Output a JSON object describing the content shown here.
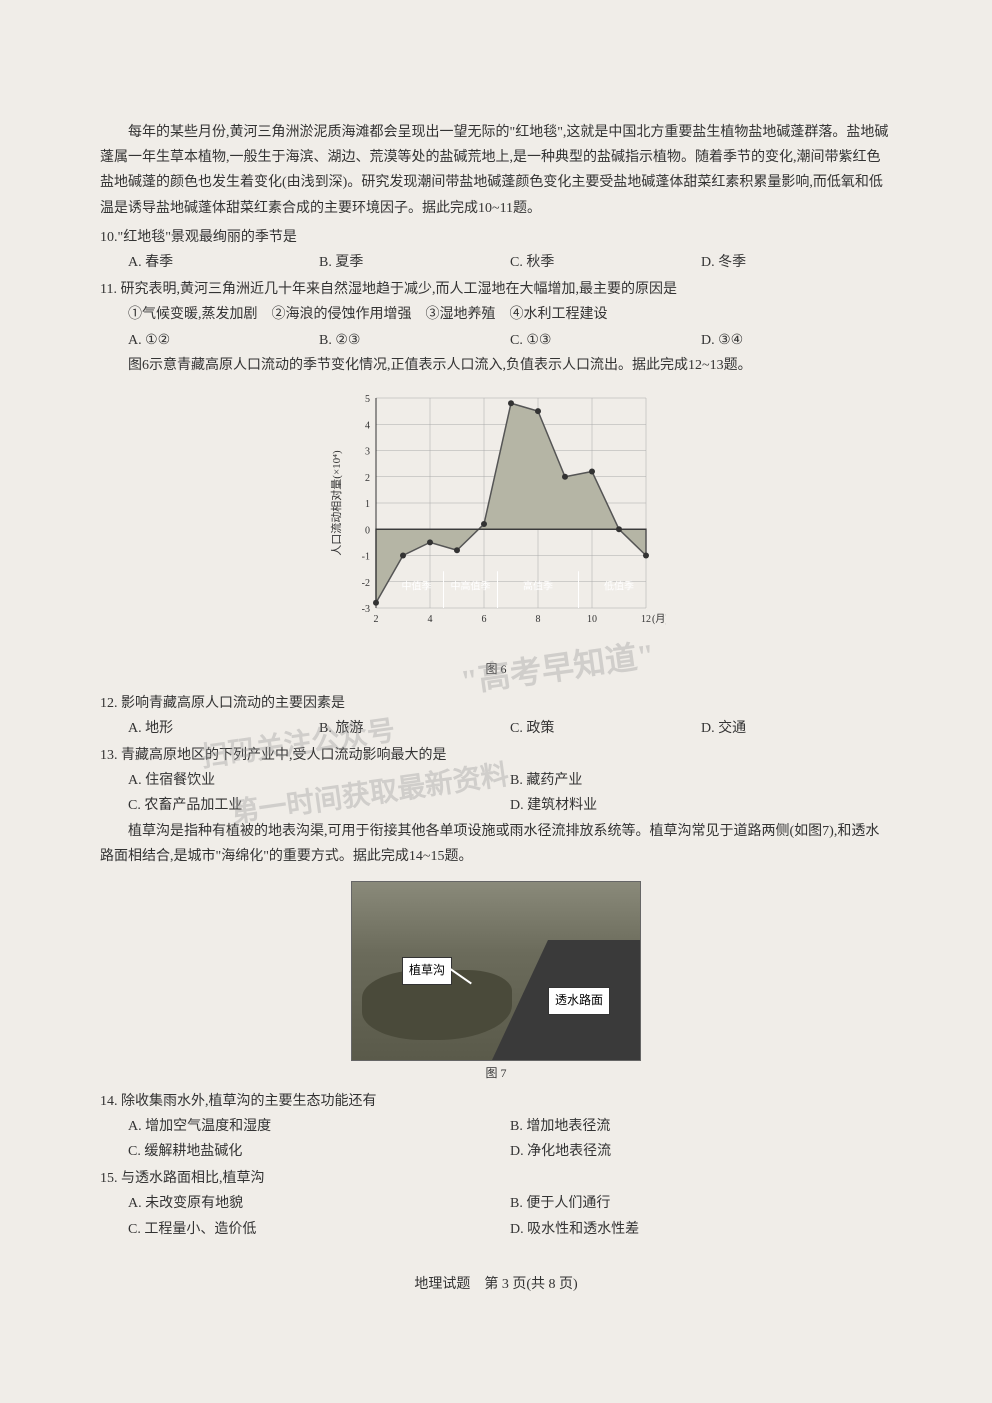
{
  "passage1": {
    "text": "每年的某些月份,黄河三角洲淤泥质海滩都会呈现出一望无际的\"红地毯\",这就是中国北方重要盐生植物盐地碱蓬群落。盐地碱蓬属一年生草本植物,一般生于海滨、湖边、荒漠等处的盐碱荒地上,是一种典型的盐碱指示植物。随着季节的变化,潮间带紫红色盐地碱蓬的颜色也发生着变化(由浅到深)。研究发现潮间带盐地碱蓬颜色变化主要受盐地碱蓬体甜菜红素积累量影响,而低氧和低温是诱导盐地碱蓬体甜菜红素合成的主要环境因子。据此完成10~11题。"
  },
  "q10": {
    "stem": "10.\"红地毯\"景观最绚丽的季节是",
    "A": "A. 春季",
    "B": "B. 夏季",
    "C": "C. 秋季",
    "D": "D. 冬季"
  },
  "q11": {
    "stem": "11. 研究表明,黄河三角洲近几十年来自然湿地趋于减少,而人工湿地在大幅增加,最主要的原因是",
    "line2": "①气候变暖,蒸发加剧　②海浪的侵蚀作用增强　③湿地养殖　④水利工程建设",
    "A": "A. ①②",
    "B": "B. ②③",
    "C": "C. ①③",
    "D": "D. ③④"
  },
  "passage2": {
    "text": "图6示意青藏高原人口流动的季节变化情况,正值表示人口流入,负值表示人口流出。据此完成12~13题。"
  },
  "chart": {
    "type": "area",
    "x": [
      2,
      3,
      4,
      5,
      6,
      7,
      8,
      9,
      10,
      11,
      12
    ],
    "y": [
      -2.8,
      -1.0,
      -0.5,
      -0.8,
      0.2,
      4.8,
      4.5,
      2.0,
      2.2,
      0.0,
      -1.0
    ],
    "ylabel": "人口流动相对量(×10⁴)",
    "xlabel": "(月)",
    "ylim": [
      -3,
      5
    ],
    "ytick_step": 1,
    "xlim": [
      2,
      12
    ],
    "xtick_step": 2,
    "categories": [
      "中值季",
      "中高值季",
      "高值季",
      "低值季"
    ],
    "cat_positions": [
      3.5,
      5.5,
      8,
      11
    ],
    "fill_color": "#b5b5a5",
    "stroke_color": "#555555",
    "grid_color": "#aaaaaa",
    "bg_color": "#f0ede8",
    "caption": "图 6"
  },
  "q12": {
    "stem": "12. 影响青藏高原人口流动的主要因素是",
    "A": "A. 地形",
    "B": "B. 旅游",
    "C": "C. 政策",
    "D": "D. 交通"
  },
  "q13": {
    "stem": "13. 青藏高原地区的下列产业中,受人口流动影响最大的是",
    "A": "A. 住宿餐饮业",
    "B": "B. 藏药产业",
    "C": "C. 农畜产品加工业",
    "D": "D. 建筑材料业"
  },
  "passage3": {
    "text": "植草沟是指种有植被的地表沟渠,可用于衔接其他各单项设施或雨水径流排放系统等。植草沟常见于道路两侧(如图7),和透水路面相结合,是城市\"海绵化\"的重要方式。据此完成14~15题。"
  },
  "photo": {
    "label_a": "植草沟",
    "label_b": "透水路面",
    "caption": "图 7"
  },
  "q14": {
    "stem": "14. 除收集雨水外,植草沟的主要生态功能还有",
    "A": "A. 增加空气温度和湿度",
    "B": "B. 增加地表径流",
    "C": "C. 缓解耕地盐碱化",
    "D": "D. 净化地表径流"
  },
  "q15": {
    "stem": "15. 与透水路面相比,植草沟",
    "A": "A. 未改变原有地貌",
    "B": "B. 便于人们通行",
    "C": "C. 工程量小、造价低",
    "D": "D. 吸水性和透水性差"
  },
  "watermarks": {
    "w1": "\"高考早知道\"",
    "w2": "扫码关注公众号",
    "w3": "第一时间获取最新资料"
  },
  "footer": "地理试题　第 3 页(共 8 页)"
}
